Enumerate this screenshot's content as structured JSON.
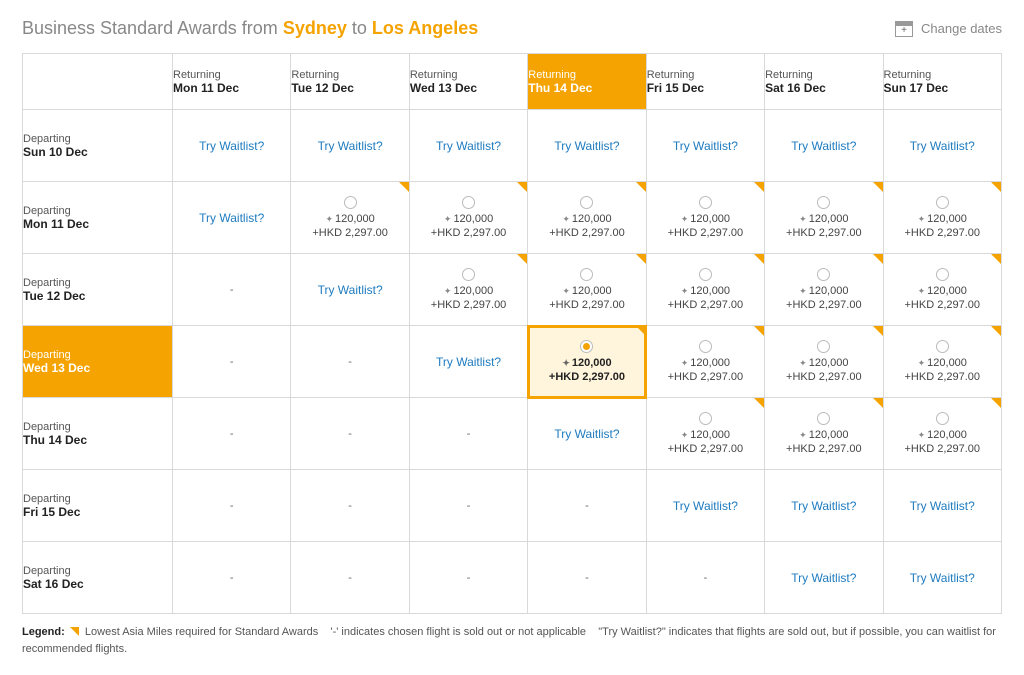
{
  "colors": {
    "accent": "#f5a300",
    "link": "#1e7bbf",
    "grid_border": "#d9d9d9",
    "text_muted": "#888",
    "selected_cell_bg": "#fff5dd"
  },
  "header": {
    "title_prefix": "Business Standard Awards from ",
    "origin": "Sydney",
    "title_to": " to ",
    "destination": "Los Angeles",
    "change_dates_label": "Change dates"
  },
  "labels": {
    "returning": "Returning",
    "departing": "Departing",
    "try_waitlist": "Try Waitlist?",
    "dash": "-"
  },
  "return_dates": [
    "Mon 11 Dec",
    "Tue 12 Dec",
    "Wed 13 Dec",
    "Thu 14 Dec",
    "Fri 15 Dec",
    "Sat 16 Dec",
    "Sun 17 Dec"
  ],
  "depart_dates": [
    "Sun 10 Dec",
    "Mon 11 Dec",
    "Tue 12 Dec",
    "Wed 13 Dec",
    "Thu 14 Dec",
    "Fri 15 Dec",
    "Sat 16 Dec"
  ],
  "selected_return_index": 3,
  "selected_depart_index": 3,
  "price_miles": "120,000",
  "price_fee": "+HKD 2,297.00",
  "cells": [
    [
      "waitlist",
      "waitlist",
      "waitlist",
      "waitlist",
      "waitlist",
      "waitlist",
      "waitlist"
    ],
    [
      "waitlist",
      "price_flag",
      "price_flag",
      "price_flag",
      "price_flag",
      "price_flag",
      "price_flag"
    ],
    [
      "dash",
      "waitlist",
      "price_flag",
      "price_flag",
      "price_flag",
      "price_flag",
      "price_flag"
    ],
    [
      "dash",
      "dash",
      "waitlist",
      "price_selected_flag",
      "price_flag",
      "price_flag",
      "price_flag"
    ],
    [
      "dash",
      "dash",
      "dash",
      "waitlist",
      "price_flag",
      "price_flag",
      "price_flag"
    ],
    [
      "dash",
      "dash",
      "dash",
      "dash",
      "waitlist",
      "waitlist",
      "waitlist"
    ],
    [
      "dash",
      "dash",
      "dash",
      "dash",
      "dash",
      "waitlist",
      "waitlist"
    ]
  ],
  "legend": {
    "label": "Legend:",
    "lowest": " Lowest Asia Miles required for Standard Awards",
    "dash_note": "'-' indicates chosen flight is sold out or not applicable",
    "waitlist_note": "\"Try Waitlist?\" indicates that flights are sold out, but if possible, you can waitlist for recommended flights."
  }
}
